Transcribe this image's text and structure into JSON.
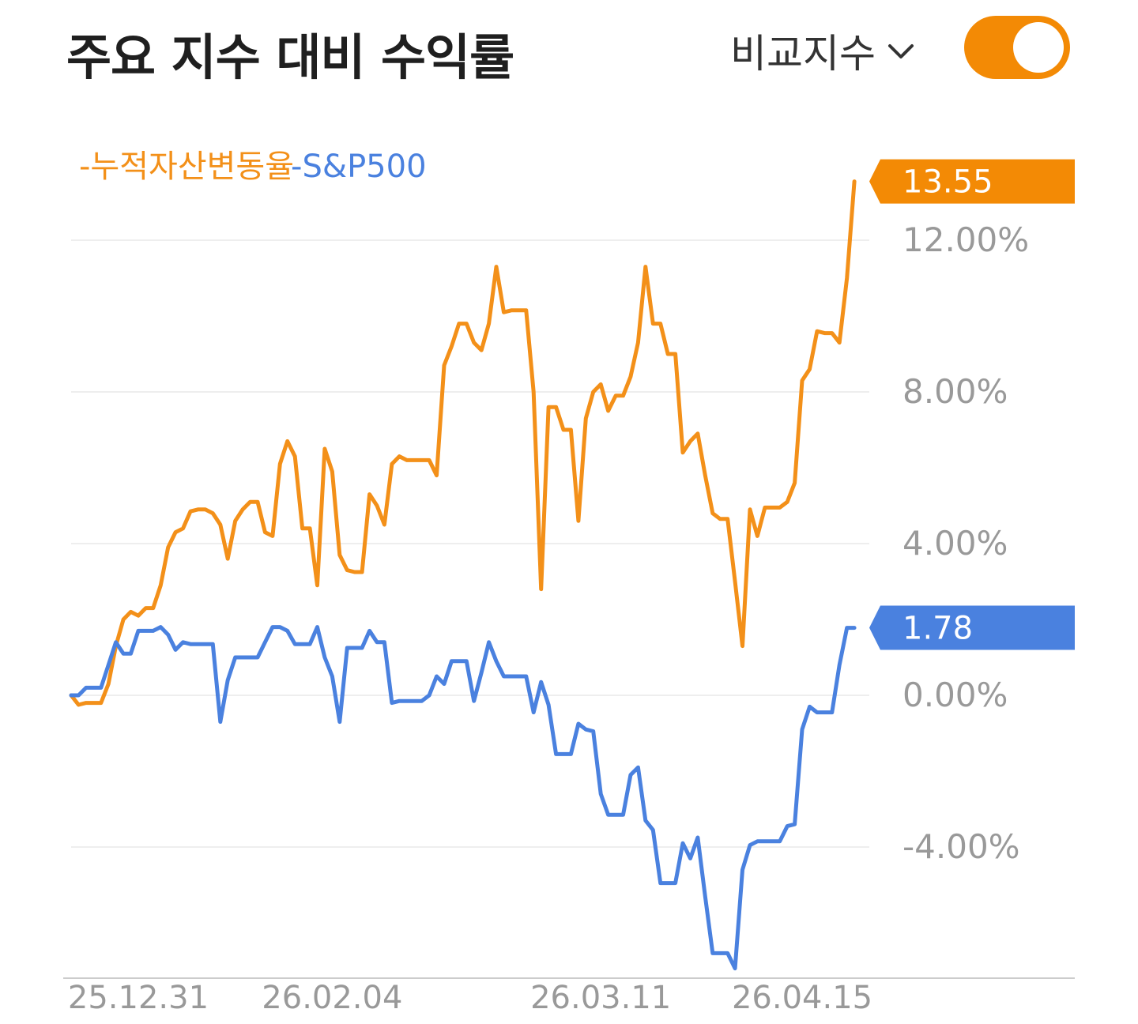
{
  "header": {
    "title": "주요 지수 대비 수익률",
    "compare_label": "비교지수",
    "toggle_on": true
  },
  "colors": {
    "portfolio": "#f39019",
    "sp500": "#4a81df",
    "toggle": "#f38a05",
    "grid": "#eeeeee",
    "axis": "#cccccc"
  },
  "chart_data": {
    "type": "line",
    "ylim": [
      -7.5,
      13.75
    ],
    "yticks": [
      {
        "value": 12,
        "label": "12.00%"
      },
      {
        "value": 8,
        "label": "8.00%"
      },
      {
        "value": 4,
        "label": "4.00%"
      },
      {
        "value": 0,
        "label": "0.00%"
      },
      {
        "value": -4,
        "label": "-4.00%"
      }
    ],
    "xlim": [
      0,
      107
    ],
    "xticks": [
      {
        "index": 9,
        "label": "25.12.31"
      },
      {
        "index": 35,
        "label": "26.02.04"
      },
      {
        "index": 71,
        "label": "26.03.11"
      },
      {
        "index": 98,
        "label": "26.04.15"
      }
    ],
    "series": [
      {
        "name": "누적자산변동율",
        "end_label": "13.55",
        "values": [
          0,
          -0.25,
          -0.2,
          -0.2,
          -0.2,
          0.3,
          1.3,
          2.0,
          2.2,
          2.1,
          2.3,
          2.3,
          2.9,
          3.9,
          4.3,
          4.4,
          4.85,
          4.9,
          4.9,
          4.8,
          4.5,
          3.6,
          4.6,
          4.9,
          5.1,
          5.1,
          4.3,
          4.2,
          6.1,
          6.7,
          6.3,
          4.4,
          4.4,
          2.9,
          6.5,
          5.9,
          3.7,
          3.3,
          3.25,
          3.25,
          5.3,
          5.0,
          4.5,
          6.1,
          6.3,
          6.2,
          6.2,
          6.2,
          6.2,
          5.8,
          8.7,
          9.2,
          9.8,
          9.8,
          9.3,
          9.1,
          9.8,
          11.3,
          10.1,
          10.15,
          10.15,
          10.15,
          8.0,
          2.8,
          7.6,
          7.6,
          7.0,
          7.0,
          4.6,
          7.3,
          8.0,
          8.2,
          7.5,
          7.9,
          7.9,
          8.4,
          9.3,
          11.3,
          9.8,
          9.8,
          9.0,
          9.0,
          6.4,
          6.7,
          6.9,
          5.8,
          4.8,
          4.65,
          4.65,
          3.0,
          1.3,
          4.9,
          4.2,
          4.95,
          4.95,
          4.95,
          5.1,
          5.6,
          8.3,
          8.6,
          9.6,
          9.55,
          9.55,
          9.3,
          11.0,
          13.55
        ]
      },
      {
        "name": "S&P500",
        "end_label": "1.78",
        "values": [
          0,
          0,
          0.2,
          0.2,
          0.2,
          0.8,
          1.4,
          1.1,
          1.1,
          1.7,
          1.7,
          1.7,
          1.8,
          1.6,
          1.2,
          1.4,
          1.35,
          1.35,
          1.35,
          1.35,
          -0.7,
          0.4,
          1.0,
          1.0,
          1.0,
          1.0,
          1.4,
          1.8,
          1.8,
          1.7,
          1.35,
          1.35,
          1.35,
          1.8,
          1.0,
          0.5,
          -0.7,
          1.25,
          1.25,
          1.25,
          1.7,
          1.4,
          1.4,
          -0.2,
          -0.15,
          -0.15,
          -0.15,
          -0.15,
          0,
          0.5,
          0.3,
          0.9,
          0.9,
          0.9,
          -0.15,
          0.6,
          1.4,
          0.9,
          0.5,
          0.5,
          0.5,
          0.5,
          -0.45,
          0.35,
          -0.25,
          -1.55,
          -1.55,
          -1.55,
          -0.75,
          -0.9,
          -0.95,
          -2.6,
          -3.15,
          -3.15,
          -3.15,
          -2.1,
          -1.9,
          -3.3,
          -3.55,
          -4.95,
          -4.95,
          -4.95,
          -3.9,
          -4.3,
          -3.75,
          -5.3,
          -6.8,
          -6.8,
          -6.8,
          -7.2,
          -4.6,
          -3.95,
          -3.85,
          -3.85,
          -3.85,
          -3.85,
          -3.45,
          -3.4,
          -0.9,
          -0.3,
          -0.45,
          -0.45,
          -0.45,
          0.8,
          1.78,
          1.78
        ]
      }
    ]
  }
}
